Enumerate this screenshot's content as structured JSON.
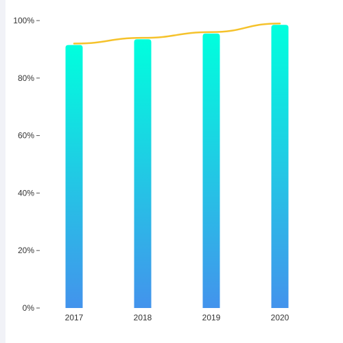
{
  "chart_data": {
    "type": "bar",
    "categories": [
      "2017",
      "2018",
      "2019",
      "2020"
    ],
    "y_ticks": [
      "0%",
      "20%",
      "40%",
      "60%",
      "80%",
      "100%"
    ],
    "ylim": [
      0,
      100
    ],
    "series": [
      {
        "kind": "bar",
        "values": [
          91.5,
          93.5,
          95.5,
          98.5
        ],
        "gradient": [
          "#00ffdd",
          "#4393ec"
        ]
      },
      {
        "kind": "line",
        "values": [
          92,
          94,
          96,
          99
        ],
        "color": "#f5c22b"
      }
    ],
    "grid": false,
    "title": "",
    "xlabel": "",
    "ylabel": ""
  }
}
